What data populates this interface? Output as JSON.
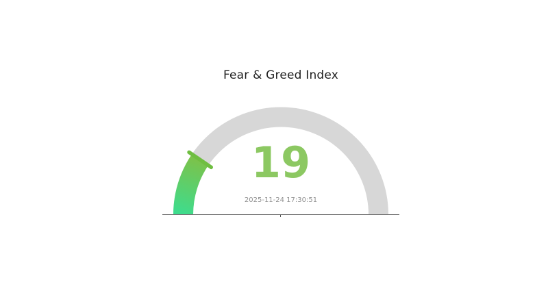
{
  "page": {
    "background": "#ffffff"
  },
  "chart_data": {
    "type": "gauge",
    "title": "Fear & Greed Index",
    "value": 19,
    "min": 0,
    "max": 100,
    "timestamp": "2025-11-24 17:30:51",
    "start_angle_deg": 180,
    "end_angle_deg": 0,
    "legend": "none",
    "axis_ticks_visible": false,
    "colors": {
      "track": "#d7d7d7",
      "arc_gradient_start": "#3edc8d",
      "arc_gradient_end": "#7cc24a",
      "threshold_marker": "#6fbe41",
      "number": "#8cc862",
      "title_text": "#1f1f1f",
      "timestamp_text": "#909090",
      "baseline": "#737373",
      "center_tick": "#555555"
    }
  }
}
